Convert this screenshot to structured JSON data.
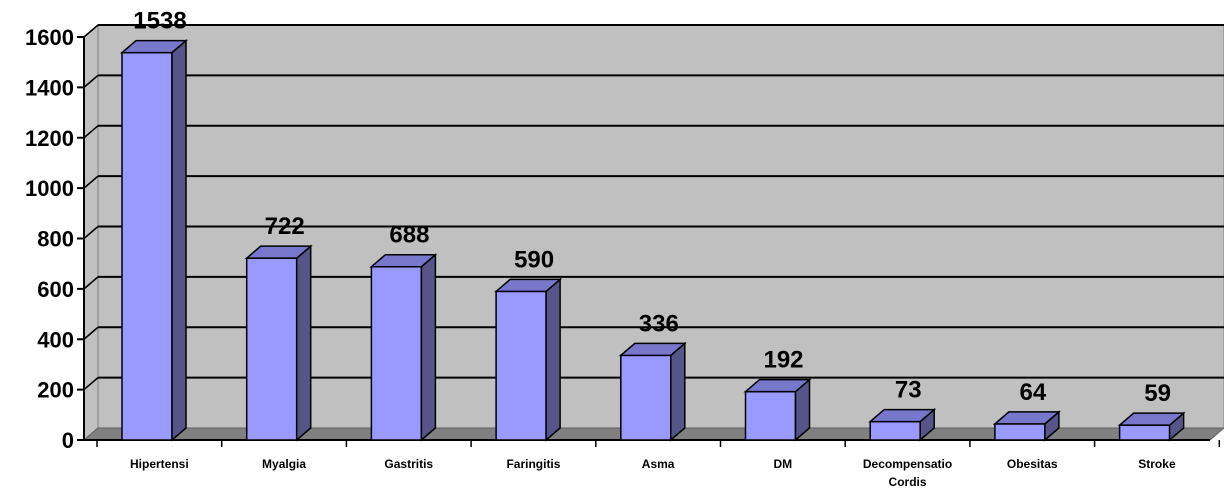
{
  "chart_data": {
    "type": "bar",
    "categories": [
      [
        "Hipertensi"
      ],
      [
        "Myalgia"
      ],
      [
        "Gastritis"
      ],
      [
        "Faringitis"
      ],
      [
        "Asma"
      ],
      [
        "DM"
      ],
      [
        "Decompensatio",
        "Cordis"
      ],
      [
        "Obesitas"
      ],
      [
        "Stroke"
      ]
    ],
    "values": [
      1538,
      722,
      688,
      590,
      336,
      192,
      73,
      64,
      59
    ],
    "ylim": [
      0,
      1600
    ],
    "yticks": [
      0,
      200,
      400,
      600,
      800,
      1000,
      1200,
      1400,
      1600
    ],
    "grid": true,
    "colors": {
      "bar_front": "#9999ff",
      "bar_side": "#55558a",
      "bar_top": "#7777cc",
      "wall": "#c0c0c0",
      "floor": "#808080"
    }
  }
}
